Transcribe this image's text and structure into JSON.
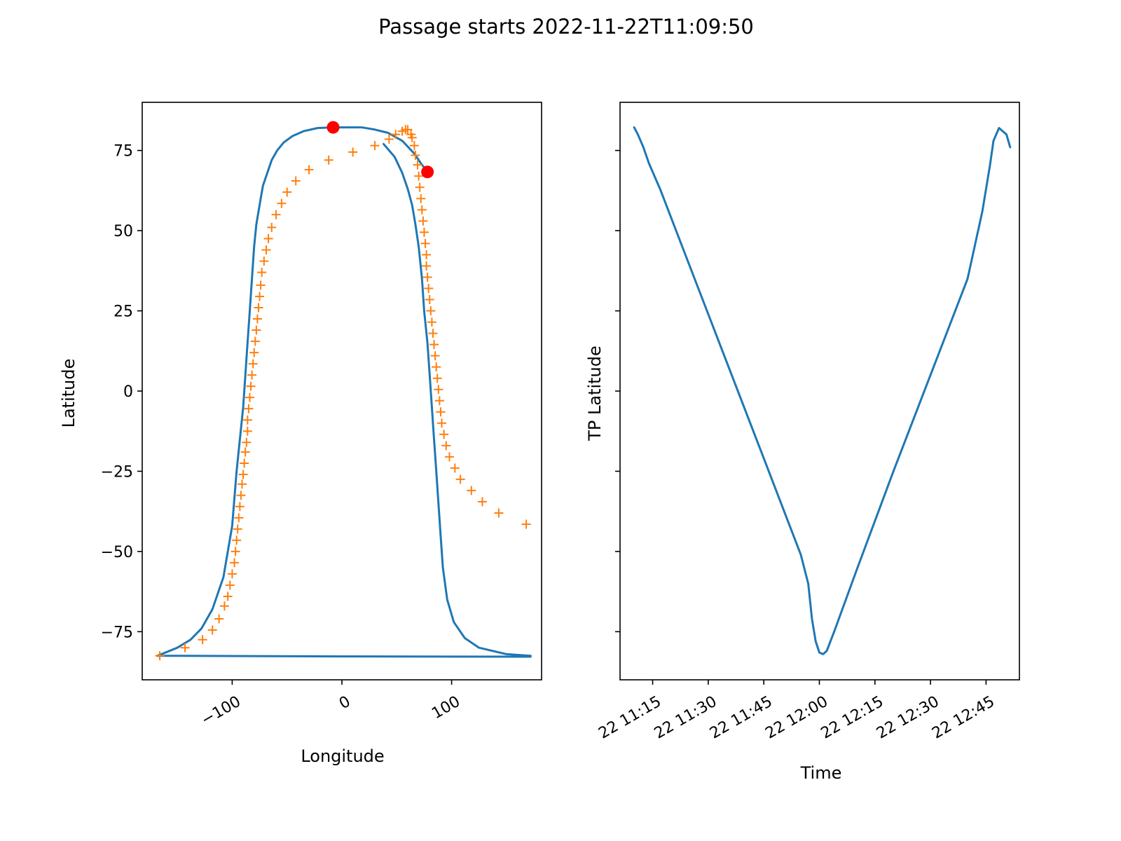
{
  "figure": {
    "suptitle": "Passage starts 2022-11-22T11:09:50"
  },
  "colors": {
    "line": "#1f77b4",
    "markers": "#ff7f0e",
    "points": "#ff0000",
    "axes": "#000000",
    "background": "#ffffff"
  },
  "chart_data": [
    {
      "type": "line",
      "xlabel": "Longitude",
      "ylabel": "Latitude",
      "xlim": [
        -182,
        182
      ],
      "ylim": [
        -90,
        90
      ],
      "xticks": [
        -100,
        0,
        100
      ],
      "xtick_labels": [
        "−100",
        "0",
        "100"
      ],
      "yticks": [
        75,
        50,
        25,
        0,
        -25,
        -50,
        -75
      ],
      "ytick_labels": [
        "75",
        "50",
        "25",
        "0",
        "−25",
        "−50",
        "−75"
      ],
      "grid": false,
      "series": [
        {
          "style": "line",
          "x": [
            -168,
            -150,
            -138,
            -128,
            -118,
            -108,
            -100,
            -96,
            -93,
            -90,
            -88,
            -86,
            -84,
            -82,
            -80,
            -78,
            -76,
            -74,
            -72,
            -70,
            -67,
            -64,
            -59,
            -53,
            -45,
            -35,
            -22,
            -8,
            0,
            18,
            30,
            42,
            55,
            66,
            72,
            78
          ],
          "y": [
            -82.5,
            -80,
            -77.5,
            -74,
            -68,
            -58,
            -42,
            -25,
            -15,
            -5,
            5,
            15,
            25,
            35,
            45,
            52,
            56,
            60,
            64,
            66,
            69,
            72,
            75,
            77.5,
            79.5,
            81,
            82,
            82.2,
            82.2,
            82.2,
            81.5,
            80.5,
            78,
            74,
            71,
            68.3
          ]
        },
        {
          "style": "line",
          "x": [
            38,
            48,
            55,
            60,
            64,
            67,
            70,
            73,
            75,
            78,
            80,
            82,
            84,
            86,
            88,
            90,
            92,
            96,
            102,
            112,
            125,
            150,
            172
          ],
          "y": [
            77,
            73,
            68,
            63,
            58,
            52,
            45,
            35,
            25,
            15,
            5,
            -5,
            -15,
            -25,
            -35,
            -45,
            -55,
            -65,
            -72,
            -77,
            -80,
            -82,
            -82.5
          ]
        },
        {
          "style": "line",
          "x": [
            -168,
            0,
            172
          ],
          "y": [
            -82.5,
            -82.7,
            -82.8
          ]
        },
        {
          "style": "plus",
          "x": [
            -166,
            -143,
            -127,
            -118,
            -112,
            -107,
            -104,
            -102,
            -100,
            -98,
            -97,
            -96,
            -95,
            -94,
            -93,
            -92,
            -91,
            -90,
            -89,
            -88,
            -87,
            -86,
            -86,
            -85,
            -84,
            -83,
            -82,
            -81,
            -80,
            -79,
            -78,
            -77,
            -76,
            -75,
            -74,
            -73,
            -71,
            -69,
            -67,
            -64,
            -60,
            -55,
            -50,
            -42,
            -30,
            -12,
            10,
            30,
            43,
            49,
            55,
            58,
            60,
            63,
            64,
            66,
            67,
            69,
            70,
            71,
            72,
            73,
            74,
            75,
            76,
            77,
            77,
            78,
            79,
            80,
            81,
            82,
            83,
            84,
            85,
            86,
            87,
            88,
            89,
            90,
            91,
            93,
            95,
            98,
            103,
            108,
            118,
            128,
            143,
            168
          ],
          "y": [
            -82.5,
            -80,
            -77.5,
            -74.5,
            -71,
            -67,
            -64,
            -60.5,
            -57,
            -53.5,
            -50,
            -46.5,
            -43,
            -39.5,
            -36,
            -32.5,
            -29,
            -26,
            -22.5,
            -19,
            -16,
            -12.5,
            -9,
            -5.5,
            -2,
            1.5,
            5,
            8.5,
            12,
            15.5,
            19,
            22.5,
            26,
            29.5,
            33,
            37,
            40.5,
            44,
            47.5,
            51,
            55,
            58.5,
            62,
            65.5,
            69,
            72,
            74.5,
            76.5,
            78.5,
            80,
            81,
            81.5,
            81.5,
            80,
            79,
            76.5,
            73.5,
            70.5,
            67,
            63.5,
            60,
            56.5,
            53,
            49.5,
            46,
            42.5,
            39,
            35.5,
            32,
            28.5,
            25,
            21.5,
            18,
            14.5,
            11,
            7.5,
            4,
            0.5,
            -3,
            -6.5,
            -10,
            -13.5,
            -17,
            -20.5,
            -24,
            -27.5,
            -31,
            -34.5,
            -38,
            -41.5
          ]
        },
        {
          "style": "dot",
          "x": [
            -8,
            78
          ],
          "y": [
            82.2,
            68.3
          ]
        }
      ]
    },
    {
      "type": "line",
      "xlabel": "Time",
      "ylabel": "TP Latitude",
      "x_is_time": true,
      "xlim": [
        "2022-11-22T11:06:12",
        "2022-11-22T12:54:00"
      ],
      "ylim": [
        -90,
        90
      ],
      "xticks": [
        "2022-11-22T11:15:00",
        "2022-11-22T11:30:00",
        "2022-11-22T11:45:00",
        "2022-11-22T12:00:00",
        "2022-11-22T12:15:00",
        "2022-11-22T12:30:00",
        "2022-11-22T12:45:00"
      ],
      "xtick_labels": [
        "22 11:15",
        "22 11:30",
        "22 11:45",
        "22 12:00",
        "22 12:15",
        "22 12:30",
        "22 12:45"
      ],
      "yticks": [
        75,
        50,
        25,
        0,
        -25,
        -50,
        -75
      ],
      "ytick_labels": [],
      "grid": false,
      "series": [
        {
          "style": "line",
          "x": [
            "2022-11-22T11:10:00",
            "2022-11-22T11:11:00",
            "2022-11-22T11:12:30",
            "2022-11-22T11:14:00",
            "2022-11-22T11:17:00",
            "2022-11-22T11:25:00",
            "2022-11-22T11:35:00",
            "2022-11-22T11:45:00",
            "2022-11-22T11:50:00",
            "2022-11-22T11:55:00",
            "2022-11-22T11:57:00",
            "2022-11-22T11:58:00",
            "2022-11-22T11:59:00",
            "2022-11-22T12:00:00",
            "2022-11-22T12:01:00",
            "2022-11-22T12:02:00",
            "2022-11-22T12:04:00",
            "2022-11-22T12:10:00",
            "2022-11-22T12:20:00",
            "2022-11-22T12:30:00",
            "2022-11-22T12:40:00",
            "2022-11-22T12:44:00",
            "2022-11-22T12:46:00",
            "2022-11-22T12:47:00",
            "2022-11-22T12:48:30",
            "2022-11-22T12:49:30",
            "2022-11-22T12:50:30",
            "2022-11-22T12:51:30"
          ],
          "y": [
            82.2,
            80,
            76,
            71,
            63,
            39,
            9,
            -21,
            -36,
            -51,
            -60,
            -71,
            -78,
            -81.5,
            -82,
            -81,
            -75,
            -56,
            -25,
            5,
            35,
            56,
            70,
            78,
            82,
            81,
            80,
            76
          ]
        }
      ]
    }
  ]
}
